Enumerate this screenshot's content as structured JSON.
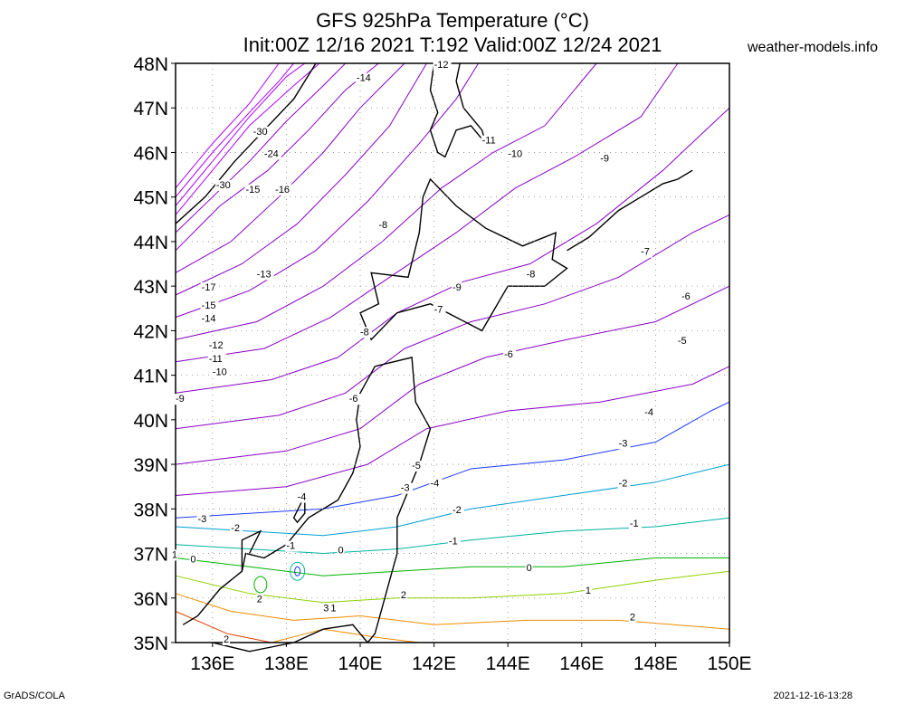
{
  "header": {
    "title_line1": "GFS 925hPa Temperature (°C)",
    "title_line2": "Init:00Z 12/16 2021 T:192 Valid:00Z 12/24 2021",
    "site": "weather-models.info"
  },
  "footer": {
    "software": "GrADS/COLA",
    "timestamp": "2021-12-16-13:28"
  },
  "map": {
    "lat_labels": [
      "48N",
      "47N",
      "46N",
      "45N",
      "44N",
      "43N",
      "42N",
      "41N",
      "40N",
      "39N",
      "38N",
      "37N",
      "36N",
      "35N"
    ],
    "lon_labels": [
      "136E",
      "138E",
      "140E",
      "142E",
      "144E",
      "146E",
      "148E",
      "150E"
    ],
    "lat_values": [
      48,
      47,
      46,
      45,
      44,
      43,
      42,
      41,
      40,
      39,
      38,
      37,
      36,
      35
    ],
    "lon_values": [
      136,
      138,
      140,
      142,
      144,
      146,
      148,
      150
    ],
    "bounds": {
      "lon_min": 135,
      "lon_max": 150,
      "lat_min": 35,
      "lat_max": 48
    },
    "contour_labels": [
      {
        "text": "-12",
        "lon": 142.0,
        "lat": 47.9
      },
      {
        "text": "-14",
        "lon": 139.9,
        "lat": 47.6
      },
      {
        "text": "-11",
        "lon": 143.3,
        "lat": 46.2
      },
      {
        "text": "-10",
        "lon": 144.0,
        "lat": 45.9
      },
      {
        "text": "-9",
        "lon": 146.5,
        "lat": 45.8
      },
      {
        "text": "-30",
        "lon": 137.1,
        "lat": 46.4
      },
      {
        "text": "-24",
        "lon": 137.4,
        "lat": 45.9
      },
      {
        "text": "-30",
        "lon": 136.1,
        "lat": 45.2
      },
      {
        "text": "-15",
        "lon": 136.9,
        "lat": 45.1
      },
      {
        "text": "-16",
        "lon": 137.7,
        "lat": 45.1
      },
      {
        "text": "-8",
        "lon": 140.5,
        "lat": 44.3
      },
      {
        "text": "-7",
        "lon": 147.6,
        "lat": 43.7
      },
      {
        "text": "-8",
        "lon": 144.5,
        "lat": 43.2
      },
      {
        "text": "-13",
        "lon": 137.2,
        "lat": 43.2
      },
      {
        "text": "-9",
        "lon": 142.5,
        "lat": 42.9
      },
      {
        "text": "-17",
        "lon": 135.7,
        "lat": 42.9
      },
      {
        "text": "-6",
        "lon": 148.7,
        "lat": 42.7
      },
      {
        "text": "-7",
        "lon": 142.0,
        "lat": 42.4
      },
      {
        "text": "-15",
        "lon": 135.7,
        "lat": 42.5
      },
      {
        "text": "-14",
        "lon": 135.7,
        "lat": 42.2
      },
      {
        "text": "-8",
        "lon": 140.0,
        "lat": 41.9
      },
      {
        "text": "-5",
        "lon": 148.6,
        "lat": 41.7
      },
      {
        "text": "-12",
        "lon": 135.9,
        "lat": 41.6
      },
      {
        "text": "-6",
        "lon": 143.9,
        "lat": 41.4
      },
      {
        "text": "-11",
        "lon": 135.9,
        "lat": 41.3
      },
      {
        "text": "-10",
        "lon": 136.0,
        "lat": 41.0
      },
      {
        "text": "-9",
        "lon": 135.0,
        "lat": 40.4
      },
      {
        "text": "-6",
        "lon": 139.7,
        "lat": 40.4
      },
      {
        "text": "-4",
        "lon": 147.7,
        "lat": 40.1
      },
      {
        "text": "-3",
        "lon": 147.0,
        "lat": 39.4
      },
      {
        "text": "-5",
        "lon": 141.4,
        "lat": 38.9
      },
      {
        "text": "-4",
        "lon": 141.9,
        "lat": 38.5
      },
      {
        "text": "-2",
        "lon": 147.0,
        "lat": 38.5
      },
      {
        "text": "-3",
        "lon": 141.1,
        "lat": 38.4
      },
      {
        "text": "-4",
        "lon": 138.3,
        "lat": 38.2
      },
      {
        "text": "-2",
        "lon": 142.5,
        "lat": 37.9
      },
      {
        "text": "-1",
        "lon": 147.3,
        "lat": 37.6
      },
      {
        "text": "-3",
        "lon": 135.6,
        "lat": 37.7
      },
      {
        "text": "-2",
        "lon": 136.5,
        "lat": 37.5
      },
      {
        "text": "-1",
        "lon": 142.4,
        "lat": 37.2
      },
      {
        "text": "-1",
        "lon": 138.0,
        "lat": 37.1
      },
      {
        "text": "0",
        "lon": 139.4,
        "lat": 37.0
      },
      {
        "text": "1",
        "lon": 134.9,
        "lat": 36.9
      },
      {
        "text": "0",
        "lon": 135.4,
        "lat": 36.8
      },
      {
        "text": "0",
        "lon": 144.5,
        "lat": 36.6
      },
      {
        "text": "1",
        "lon": 146.1,
        "lat": 36.1
      },
      {
        "text": "2",
        "lon": 141.1,
        "lat": 36.0
      },
      {
        "text": "2",
        "lon": 137.2,
        "lat": 35.9
      },
      {
        "text": "3",
        "lon": 139.0,
        "lat": 35.7
      },
      {
        "text": "1",
        "lon": 139.2,
        "lat": 35.7
      },
      {
        "text": "2",
        "lon": 147.3,
        "lat": 35.5
      },
      {
        "text": "2",
        "lon": 136.3,
        "lat": 35.0
      }
    ],
    "colors": {
      "purple": "#8a00c8",
      "violet": "#b000ff",
      "blue": "#1e3cff",
      "cyan": "#00a0d6",
      "teal": "#00b4a0",
      "green": "#00b400",
      "lime": "#8cd200",
      "orange": "#f08c00",
      "red": "#e03c00",
      "coast": "#000000",
      "grid": "#888888"
    }
  }
}
